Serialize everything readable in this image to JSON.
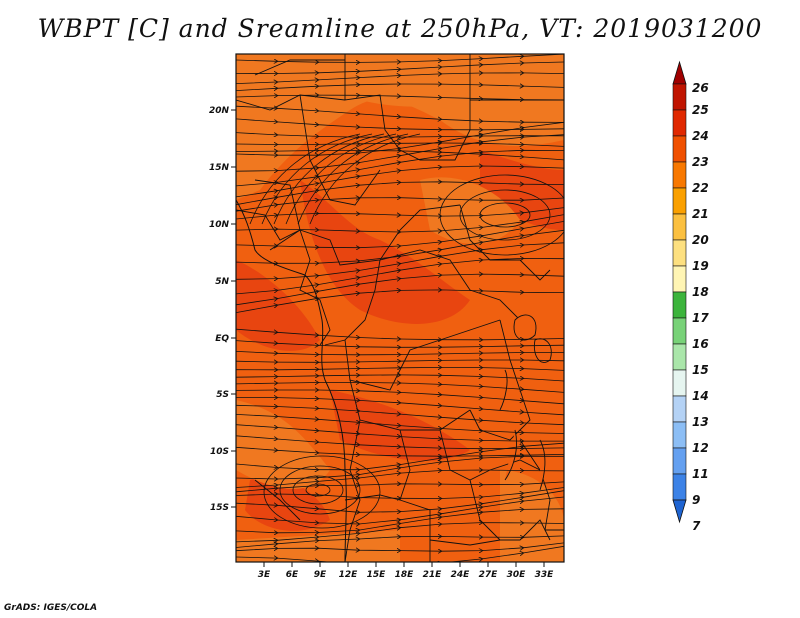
{
  "title": "WBPT [C] and Sreamline at 250hPa, VT: 2019031200",
  "footer": "GrADS: IGES/COLA",
  "axes": {
    "x_ticks": [
      "3E",
      "6E",
      "9E",
      "12E",
      "15E",
      "18E",
      "21E",
      "24E",
      "27E",
      "30E",
      "33E"
    ],
    "y_ticks": [
      "20N",
      "15N",
      "10N",
      "5N",
      "EQ",
      "5S",
      "10S",
      "15S"
    ]
  },
  "colorbar": {
    "levels": [
      "26",
      "25",
      "24",
      "23",
      "22",
      "21",
      "20",
      "19",
      "18",
      "17",
      "16",
      "15",
      "14",
      "13",
      "12",
      "11",
      "9",
      "7"
    ],
    "colors": [
      "#a00000",
      "#c01400",
      "#e02800",
      "#f05000",
      "#f87800",
      "#faa000",
      "#fbc040",
      "#fde080",
      "#fff5b4",
      "#3cb43c",
      "#78d278",
      "#aae6aa",
      "#e6f5f0",
      "#b4d2f5",
      "#8cbef5",
      "#64a0f0",
      "#3c82e6",
      "#1e64d2"
    ]
  },
  "field_colors": {
    "base": "#f06010",
    "warm": "#e84510",
    "cool": "#f07820"
  }
}
